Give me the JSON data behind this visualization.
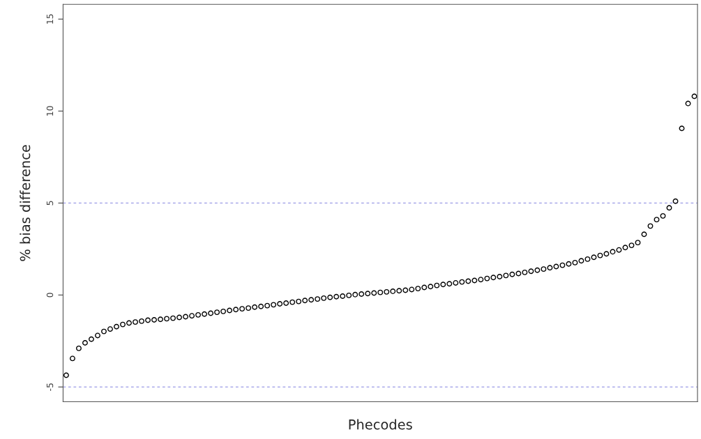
{
  "chart_data": {
    "type": "scatter",
    "xlabel": "Phecodes",
    "ylabel": "% bias difference",
    "categories": [
      null,
      null,
      null,
      null,
      null,
      null,
      null,
      null,
      null,
      null,
      null,
      null,
      null,
      null,
      null,
      null,
      null,
      null,
      null,
      null,
      null,
      null,
      null,
      null,
      null,
      null,
      null,
      null,
      null,
      null,
      null,
      null,
      null,
      null,
      null,
      null,
      null,
      null,
      null,
      null,
      null,
      null,
      null,
      null,
      null,
      null,
      null,
      null,
      null,
      null,
      null,
      null,
      null,
      null,
      null,
      null,
      null,
      null,
      null,
      null,
      null,
      null,
      null,
      null,
      null,
      null,
      null,
      null,
      null,
      null,
      null,
      null,
      null,
      null,
      null,
      null,
      null,
      null,
      null,
      null,
      null,
      null,
      null,
      null,
      null,
      null,
      null,
      null,
      null,
      null,
      null,
      null,
      null,
      null,
      null,
      null,
      null,
      null,
      null,
      null,
      null
    ],
    "series": [
      {
        "color": "#000000",
        "values": [
          -4.36,
          -3.45,
          -2.9,
          -2.6,
          -2.4,
          -2.2,
          -1.98,
          -1.85,
          -1.72,
          -1.6,
          -1.52,
          -1.47,
          -1.42,
          -1.37,
          -1.35,
          -1.32,
          -1.29,
          -1.26,
          -1.22,
          -1.18,
          -1.13,
          -1.08,
          -1.04,
          -0.99,
          -0.94,
          -0.89,
          -0.84,
          -0.79,
          -0.75,
          -0.71,
          -0.66,
          -0.62,
          -0.58,
          -0.53,
          -0.48,
          -0.44,
          -0.39,
          -0.35,
          -0.3,
          -0.26,
          -0.22,
          -0.17,
          -0.13,
          -0.09,
          -0.06,
          -0.02,
          0.02,
          0.05,
          0.08,
          0.11,
          0.14,
          0.17,
          0.2,
          0.23,
          0.26,
          0.3,
          0.35,
          0.41,
          0.46,
          0.52,
          0.57,
          0.61,
          0.66,
          0.71,
          0.75,
          0.79,
          0.84,
          0.9,
          0.95,
          1.0,
          1.06,
          1.12,
          1.17,
          1.23,
          1.29,
          1.35,
          1.41,
          1.48,
          1.55,
          1.62,
          1.69,
          1.76,
          1.86,
          1.95,
          2.05,
          2.15,
          2.24,
          2.35,
          2.45,
          2.58,
          2.7,
          2.85,
          3.3,
          3.75,
          4.1,
          4.3,
          4.74,
          5.1,
          9.06,
          10.41,
          10.8
        ]
      }
    ],
    "ylim": [
      -5.8,
      15.8
    ],
    "yticks": [
      -5,
      0,
      5,
      10,
      15
    ],
    "ref_lines": [
      {
        "axis": "y",
        "value": 5,
        "color": "#9a9ae6",
        "line_style": "dashed"
      },
      {
        "axis": "y",
        "value": -5,
        "color": "#9a9ae6",
        "line_style": "dashed"
      }
    ],
    "marker": "circle",
    "grid": false,
    "tick_labels": "y"
  }
}
